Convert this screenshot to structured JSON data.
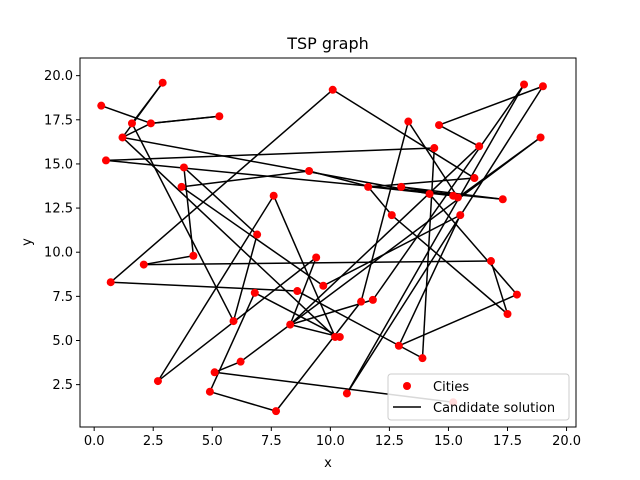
{
  "chart_data": {
    "type": "line",
    "title": "TSP graph",
    "xlabel": "x",
    "ylabel": "y",
    "xlim": [
      -0.6,
      20.4
    ],
    "ylim": [
      0.1,
      21.0
    ],
    "xticks": [
      "0.0",
      "2.5",
      "5.0",
      "7.5",
      "10.0",
      "12.5",
      "15.0",
      "17.5",
      "20.0"
    ],
    "yticks": [
      "2.5",
      "5.0",
      "7.5",
      "10.0",
      "12.5",
      "15.0",
      "17.5",
      "20.0"
    ],
    "grid": false,
    "legend": {
      "position": "lower-right",
      "entries": [
        "Cities",
        "Candidate solution"
      ]
    },
    "colors": {
      "cities": "#ff0000",
      "route": "#000000"
    },
    "series": [
      {
        "name": "Candidate solution",
        "kind": "line",
        "x": [
          0.3,
          2.4,
          5.3,
          2.4,
          1.2,
          2.9,
          1.6,
          5.9,
          6.9,
          3.8,
          4.2,
          2.1,
          16.8,
          17.5,
          12.6,
          11.6,
          16.1,
          10.1,
          0.7,
          8.6,
          13.9,
          14.4,
          0.5,
          17.3,
          13.0,
          15.2,
          11.7,
          9.1,
          3.7,
          9.7,
          15.5,
          12.9,
          17.9,
          14.2,
          1.2,
          10.2,
          7.6,
          2.7,
          9.4,
          8.3,
          16.3,
          14.6,
          19.0,
          10.7,
          18.2,
          11.8,
          8.3,
          10.4,
          6.8,
          4.9,
          7.7,
          11.3,
          13.3,
          15.4,
          18.9,
          6.2,
          5.1,
          15.2
        ],
        "y": [
          18.3,
          17.3,
          17.7,
          17.3,
          16.5,
          19.6,
          17.3,
          6.1,
          11.0,
          14.8,
          9.8,
          9.3,
          9.5,
          6.5,
          12.1,
          13.7,
          14.2,
          19.2,
          8.3,
          7.8,
          4.0,
          15.9,
          15.2,
          13.0,
          13.7,
          13.2,
          13.7,
          14.6,
          13.7,
          8.1,
          12.1,
          4.7,
          7.6,
          13.3,
          16.5,
          5.2,
          13.2,
          2.7,
          9.7,
          5.9,
          16.0,
          17.2,
          19.4,
          2.0,
          19.5,
          7.3,
          5.9,
          5.2,
          7.7,
          2.1,
          1.0,
          7.2,
          17.4,
          13.1,
          16.5,
          3.8,
          3.2,
          1.5
        ]
      },
      {
        "name": "Cities",
        "kind": "scatter",
        "x": [
          0.3,
          2.4,
          5.3,
          1.2,
          2.9,
          1.6,
          5.9,
          6.9,
          3.8,
          4.2,
          2.1,
          16.8,
          17.5,
          12.6,
          11.6,
          16.1,
          10.1,
          0.7,
          8.6,
          13.9,
          14.4,
          0.5,
          17.3,
          13.0,
          15.2,
          9.1,
          3.7,
          9.7,
          15.5,
          12.9,
          17.9,
          14.2,
          10.2,
          7.6,
          2.7,
          9.4,
          8.3,
          16.3,
          14.6,
          19.0,
          10.7,
          18.2,
          11.8,
          10.4,
          6.8,
          4.9,
          7.7,
          11.3,
          13.3,
          15.4,
          18.9,
          6.2,
          5.1,
          15.2
        ],
        "y": [
          18.3,
          17.3,
          17.7,
          16.5,
          19.6,
          17.3,
          6.1,
          11.0,
          14.8,
          9.8,
          9.3,
          9.5,
          6.5,
          12.1,
          13.7,
          14.2,
          19.2,
          8.3,
          7.8,
          4.0,
          15.9,
          15.2,
          13.0,
          13.7,
          13.2,
          14.6,
          13.7,
          8.1,
          12.1,
          4.7,
          7.6,
          13.3,
          5.2,
          13.2,
          2.7,
          9.7,
          5.9,
          16.0,
          17.2,
          19.4,
          2.0,
          19.5,
          7.3,
          5.2,
          7.7,
          2.1,
          1.0,
          7.2,
          17.4,
          13.1,
          16.5,
          3.8,
          3.2,
          1.5
        ]
      }
    ]
  }
}
